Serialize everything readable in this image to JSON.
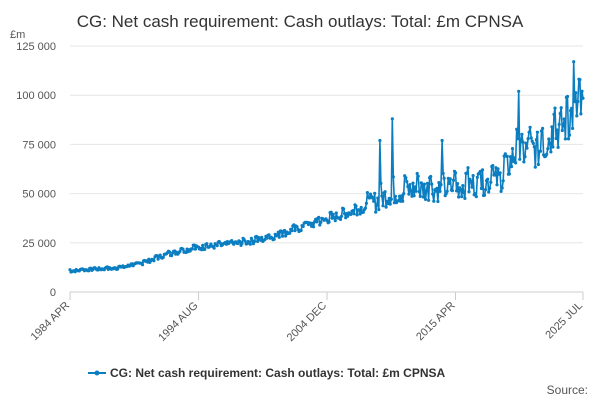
{
  "chart_data": {
    "type": "line",
    "title": "CG: Net cash requirement: Cash outlays: Total: £m CPNSA",
    "ylabel": "£m",
    "xlabel": "",
    "ylim": [
      0,
      125000
    ],
    "yticks": [
      0,
      25000,
      50000,
      75000,
      100000,
      125000
    ],
    "ytick_labels": [
      "0",
      "25 000",
      "50 000",
      "75 000",
      "100 000",
      "125 000"
    ],
    "xlim": [
      "1984-04",
      "2025-07"
    ],
    "xtick_labels": [
      "1984 APR",
      "1994 AUG",
      "2004 DEC",
      "2015 APR",
      "2025 JUL"
    ],
    "xticks": [
      "1984-04",
      "1994-08",
      "2004-12",
      "2015-04",
      "2025-07"
    ],
    "grid": true,
    "legend": "bottom-center",
    "source_label": "Source:",
    "series": [
      {
        "name": "CG: Net cash requirement: Cash outlays: Total: £m CPNSA",
        "color": "#0b7ec1",
        "frequency": "monthly",
        "start": "1984-04",
        "end": "2025-07",
        "approx_level_by_year": [
          {
            "year": 1984,
            "value": 10500
          },
          {
            "year": 1986,
            "value": 11500
          },
          {
            "year": 1988,
            "value": 12000
          },
          {
            "year": 1990,
            "value": 14500
          },
          {
            "year": 1992,
            "value": 19000
          },
          {
            "year": 1994,
            "value": 22000
          },
          {
            "year": 1996,
            "value": 23500
          },
          {
            "year": 1998,
            "value": 25000
          },
          {
            "year": 2000,
            "value": 27000
          },
          {
            "year": 2002,
            "value": 31000
          },
          {
            "year": 2004,
            "value": 35000
          },
          {
            "year": 2006,
            "value": 39000
          },
          {
            "year": 2008,
            "value": 43000
          },
          {
            "year": 2010,
            "value": 50000
          },
          {
            "year": 2012,
            "value": 52000
          },
          {
            "year": 2014,
            "value": 52000
          },
          {
            "year": 2016,
            "value": 54000
          },
          {
            "year": 2018,
            "value": 56000
          },
          {
            "year": 2019,
            "value": 58000
          },
          {
            "year": 2020,
            "value": 70000
          },
          {
            "year": 2021,
            "value": 72000
          },
          {
            "year": 2022,
            "value": 72000
          },
          {
            "year": 2023,
            "value": 80000
          },
          {
            "year": 2024,
            "value": 85000
          },
          {
            "year": 2025,
            "value": 93000
          }
        ],
        "notable_peaks": [
          {
            "date": "2009-03",
            "value": 77000
          },
          {
            "date": "2010-03",
            "value": 88000
          },
          {
            "date": "2014-03",
            "value": 77000
          },
          {
            "date": "2020-05",
            "value": 102000
          },
          {
            "date": "2024-10",
            "value": 117000
          }
        ]
      }
    ]
  }
}
